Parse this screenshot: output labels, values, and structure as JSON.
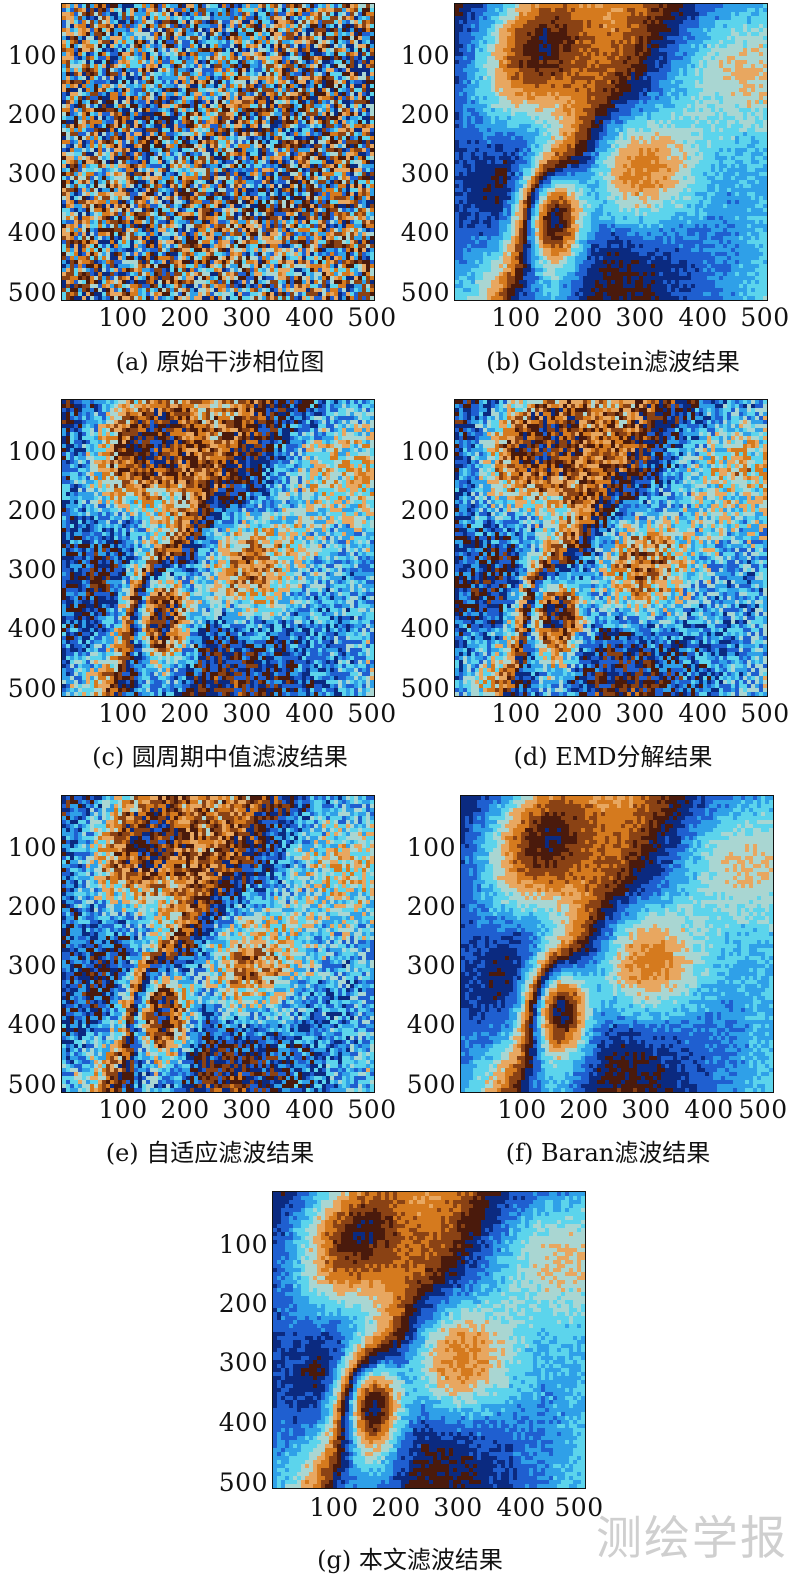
{
  "figure": {
    "panels": [
      {
        "id": "a",
        "caption": "(a) 原始干涉相位图",
        "noise": "high"
      },
      {
        "id": "b",
        "caption": "(b) Goldstein滤波结果",
        "noise": "low"
      },
      {
        "id": "c",
        "caption": "(c) 圆周期中值滤波结果",
        "noise": "medium"
      },
      {
        "id": "d",
        "caption": "(d) EMD分解结果",
        "noise": "medium"
      },
      {
        "id": "e",
        "caption": "(e) 自适应滤波结果",
        "noise": "medium"
      },
      {
        "id": "f",
        "caption": "(f) Baran滤波结果",
        "noise": "low"
      },
      {
        "id": "g",
        "caption": "(g) 本文滤波结果",
        "noise": "low"
      }
    ],
    "y_ticks": [
      "100",
      "200",
      "300",
      "400",
      "500"
    ],
    "x_ticks": [
      "100",
      "200",
      "300",
      "400",
      "500"
    ],
    "colormap": [
      "#0b2a80",
      "#1f5fd0",
      "#2fa0e8",
      "#5cd4ec",
      "#a9d6d2",
      "#e8a760",
      "#d57a1e",
      "#8a4214",
      "#4a1a0c"
    ]
  },
  "watermark": "测绘学报"
}
